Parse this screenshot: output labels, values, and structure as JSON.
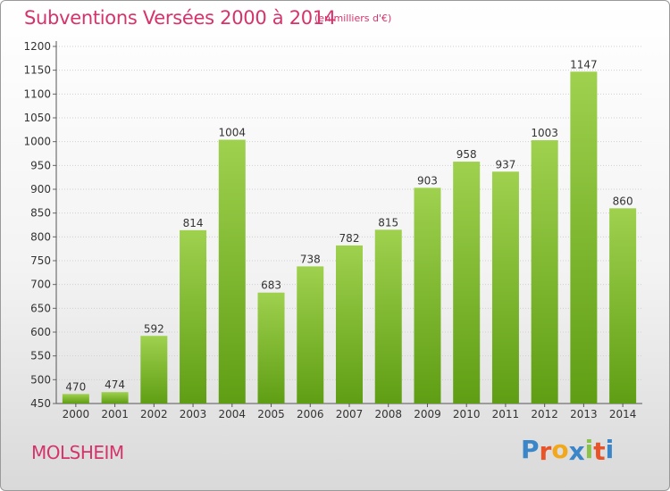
{
  "title": "Subventions Versées 2000 à 2014",
  "unit": "(en milliers d'€)",
  "city": "MOLSHEIM",
  "logo": {
    "letters": [
      "P",
      "r",
      "o",
      "x",
      "i",
      "t",
      "i"
    ],
    "colors": [
      "#3a86c8",
      "#e8542a",
      "#f2a81d",
      "#3a86c8",
      "#8bc34a",
      "#e8542a",
      "#3a86c8"
    ]
  },
  "colors": {
    "bar_top": "#9fd14e",
    "bar_bottom": "#5f9e14",
    "text": "#d6336c"
  },
  "chart_data": {
    "type": "bar",
    "categories": [
      "2000",
      "2001",
      "2002",
      "2003",
      "2004",
      "2005",
      "2006",
      "2007",
      "2008",
      "2009",
      "2010",
      "2011",
      "2012",
      "2013",
      "2014"
    ],
    "values": [
      470,
      474,
      592,
      814,
      1004,
      683,
      738,
      782,
      815,
      903,
      958,
      937,
      1003,
      1147,
      860
    ],
    "ylim": [
      450,
      1200
    ],
    "yticks": [
      450,
      500,
      550,
      600,
      650,
      700,
      750,
      800,
      850,
      900,
      950,
      1000,
      1050,
      1100,
      1150,
      1200
    ],
    "grid": true,
    "data_labels": true
  }
}
